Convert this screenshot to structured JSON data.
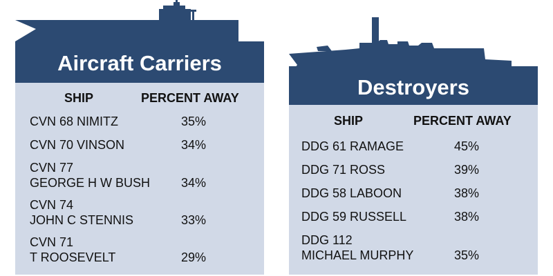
{
  "colors": {
    "navy": "#2c4a72",
    "table_bg": "#d1d9e7",
    "title_text": "#ffffff"
  },
  "carriers": {
    "title": "Aircraft Carriers",
    "col_ship": "SHIP",
    "col_percent": "PERCENT AWAY",
    "rows": [
      {
        "line1": "CVN 68 NIMITZ",
        "line2": "",
        "percent": "35%"
      },
      {
        "line1": "CVN 70 VINSON",
        "line2": "",
        "percent": "34%"
      },
      {
        "line1": "CVN 77",
        "line2": "GEORGE H W BUSH",
        "percent": "34%"
      },
      {
        "line1": "CVN 74",
        "line2": "JOHN C STENNIS",
        "percent": "33%"
      },
      {
        "line1": "CVN 71",
        "line2": "T ROOSEVELT",
        "percent": "29%"
      }
    ]
  },
  "destroyers": {
    "title": "Destroyers",
    "col_ship": "SHIP",
    "col_percent": "PERCENT AWAY",
    "rows": [
      {
        "line1": "DDG 61 RAMAGE",
        "line2": "",
        "percent": "45%"
      },
      {
        "line1": "DDG 71 ROSS",
        "line2": "",
        "percent": "39%"
      },
      {
        "line1": "DDG 58 LABOON",
        "line2": "",
        "percent": "38%"
      },
      {
        "line1": "DDG 59 RUSSELL",
        "line2": "",
        "percent": "38%"
      },
      {
        "line1": "DDG 112",
        "line2": "MICHAEL MURPHY",
        "percent": "35%"
      }
    ]
  }
}
